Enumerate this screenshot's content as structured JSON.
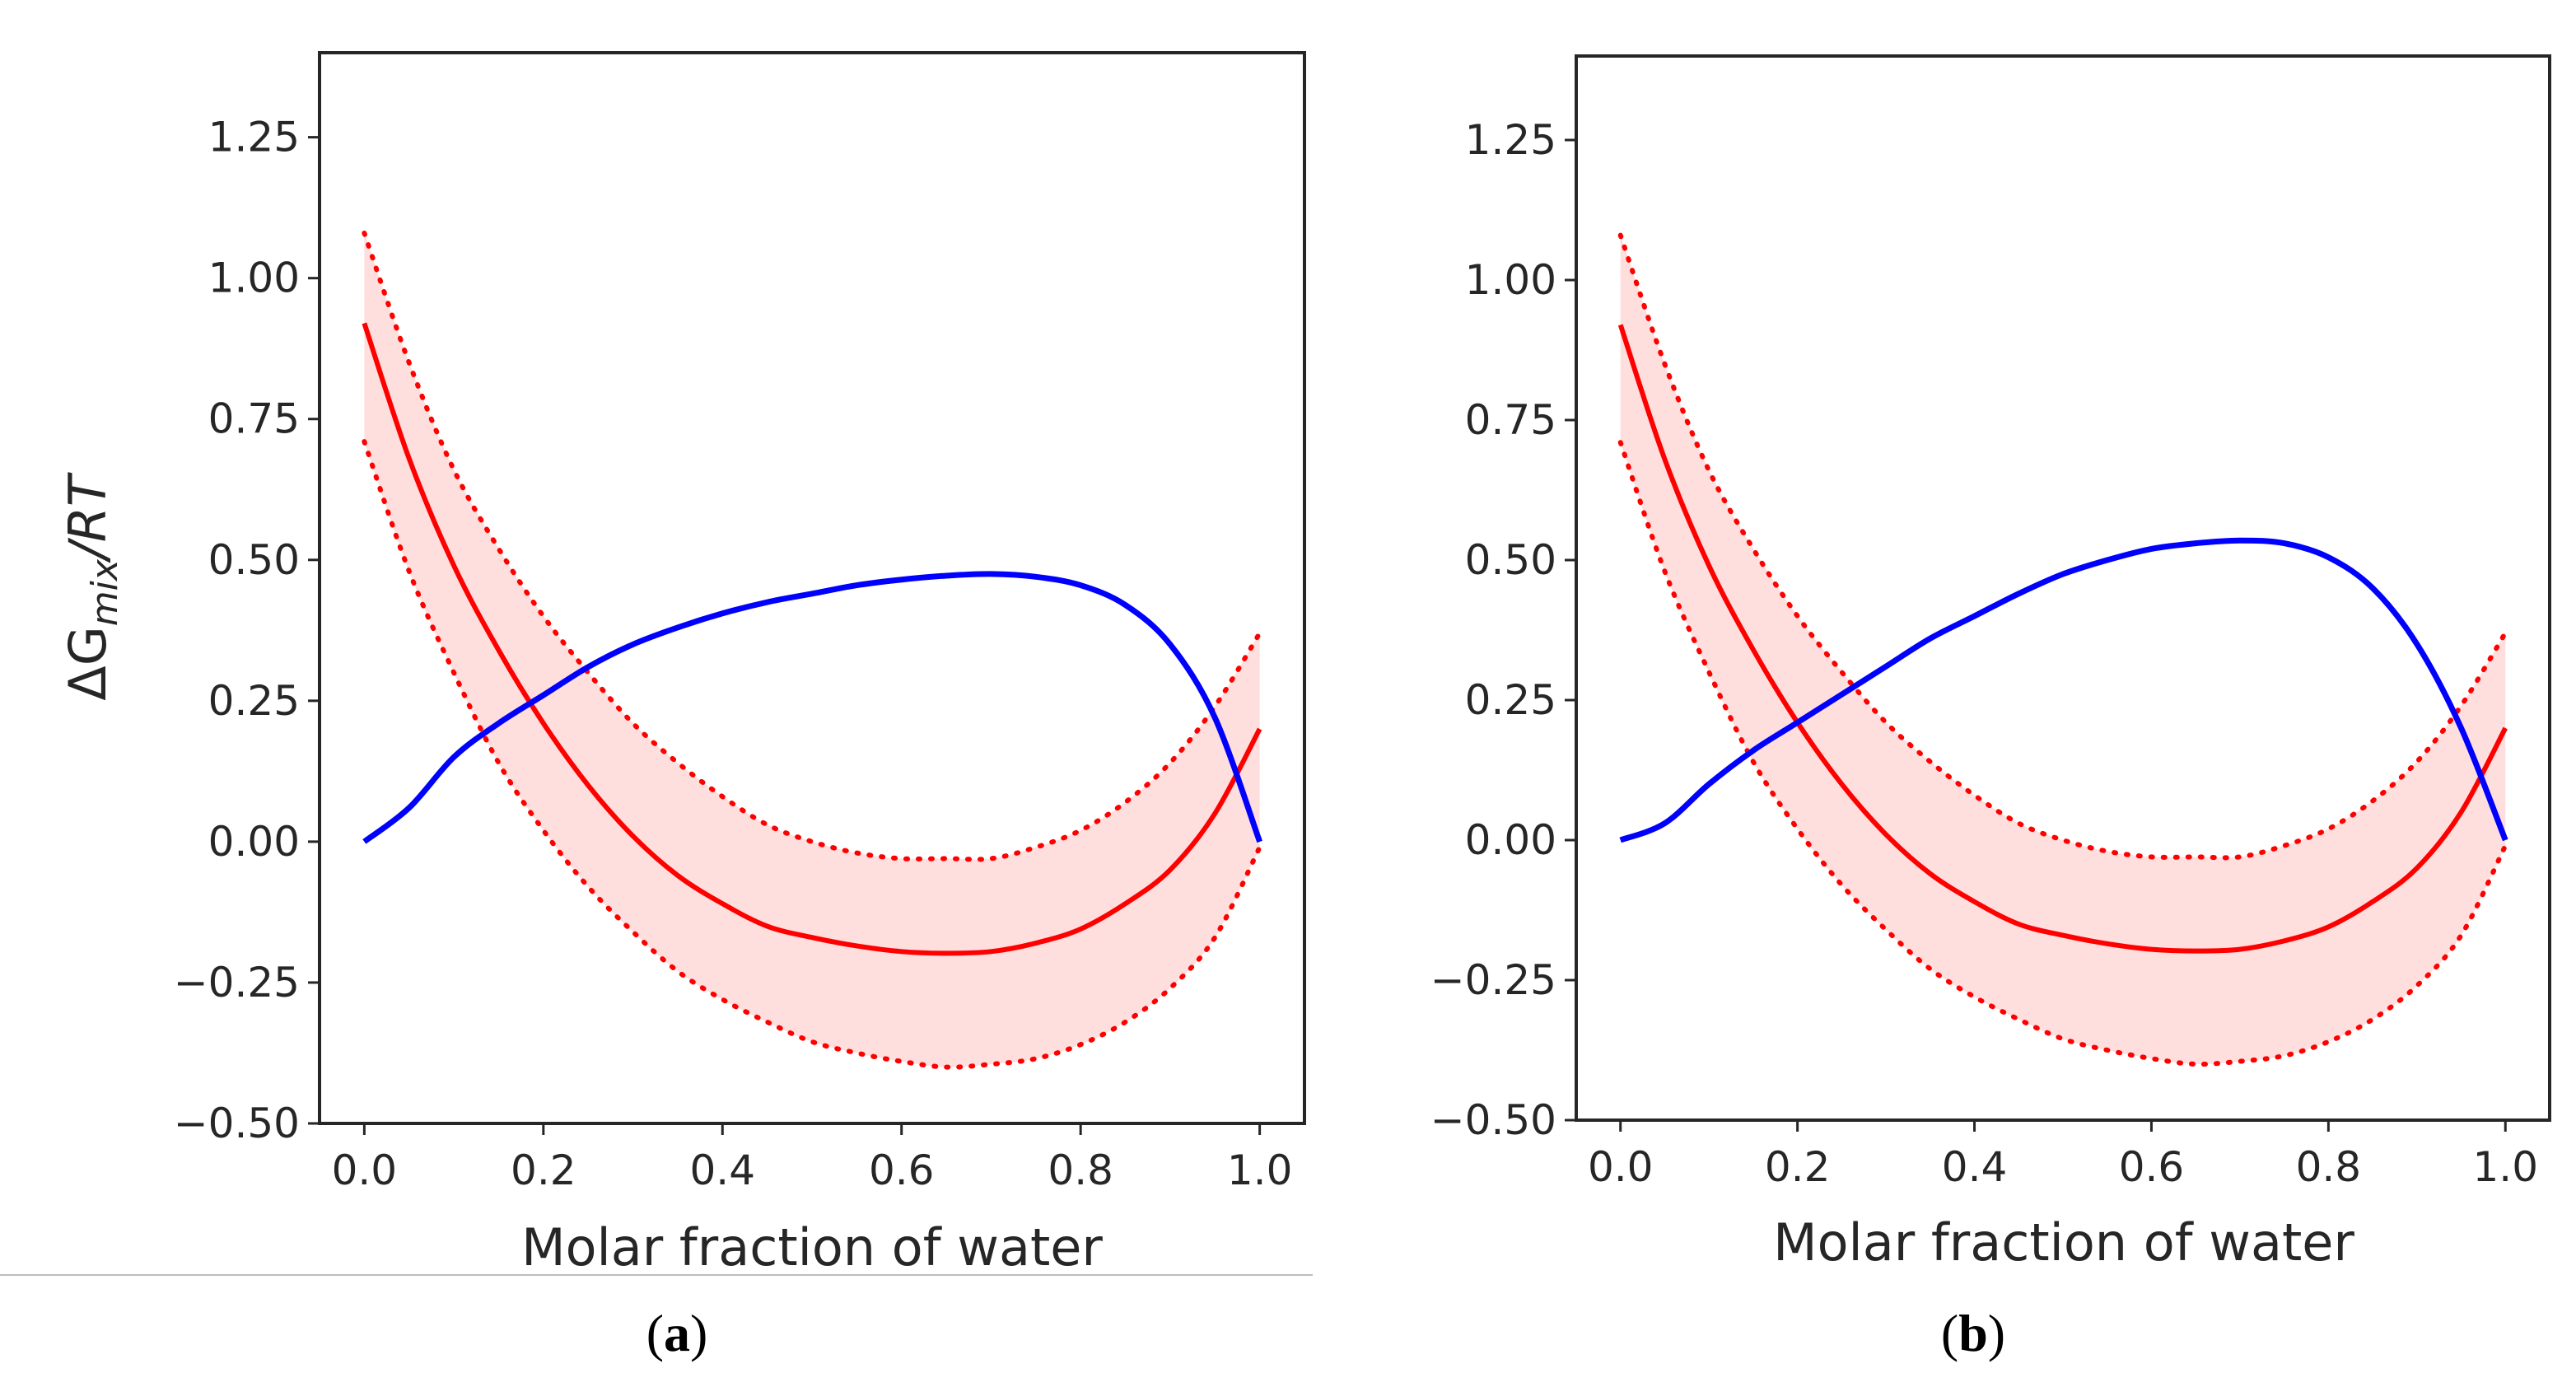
{
  "chart_data": [
    {
      "type": "line",
      "panel_label": "a",
      "xlabel": "Molar fraction of water",
      "ylabel_base": "ΔG",
      "ylabel_sub": "mix",
      "ylabel_tail": "/RT",
      "xlim": [
        -0.05,
        1.05
      ],
      "ylim": [
        -0.5,
        1.4
      ],
      "xticks": [
        0.0,
        0.2,
        0.4,
        0.6,
        0.8,
        1.0
      ],
      "xtick_labels": [
        "0.0",
        "0.2",
        "0.4",
        "0.6",
        "0.8",
        "1.0"
      ],
      "yticks": [
        -0.5,
        -0.25,
        0.0,
        0.25,
        0.5,
        0.75,
        1.0,
        1.25
      ],
      "ytick_labels": [
        "−0.50",
        "−0.25",
        "0.00",
        "0.25",
        "0.50",
        "0.75",
        "1.00",
        "1.25"
      ],
      "grid": false,
      "colors": {
        "red": "#ff0000",
        "blue": "#0000ff",
        "band": "#ffdede"
      },
      "x": [
        0.0,
        0.05,
        0.1,
        0.15,
        0.2,
        0.25,
        0.3,
        0.35,
        0.4,
        0.45,
        0.5,
        0.55,
        0.6,
        0.65,
        0.7,
        0.75,
        0.8,
        0.85,
        0.9,
        0.95,
        1.0
      ],
      "series": [
        {
          "style": "solid-red",
          "values": [
            0.92,
            0.68,
            0.49,
            0.34,
            0.21,
            0.1,
            0.01,
            -0.06,
            -0.11,
            -0.15,
            -0.17,
            -0.185,
            -0.195,
            -0.198,
            -0.195,
            -0.18,
            -0.155,
            -0.11,
            -0.05,
            0.05,
            0.2
          ]
        },
        {
          "style": "dotted-red-upper",
          "values": [
            1.08,
            0.85,
            0.66,
            0.52,
            0.4,
            0.3,
            0.21,
            0.14,
            0.08,
            0.03,
            0.0,
            -0.02,
            -0.03,
            -0.03,
            -0.03,
            -0.01,
            0.02,
            0.07,
            0.14,
            0.24,
            0.37
          ]
        },
        {
          "style": "dotted-red-lower",
          "values": [
            0.71,
            0.48,
            0.3,
            0.14,
            0.02,
            -0.08,
            -0.16,
            -0.23,
            -0.28,
            -0.32,
            -0.355,
            -0.375,
            -0.39,
            -0.4,
            -0.395,
            -0.385,
            -0.36,
            -0.32,
            -0.26,
            -0.17,
            -0.01
          ]
        },
        {
          "style": "blue",
          "values": [
            0.0,
            0.06,
            0.15,
            0.21,
            0.26,
            0.31,
            0.35,
            0.38,
            0.405,
            0.425,
            0.44,
            0.455,
            0.465,
            0.472,
            0.475,
            0.47,
            0.455,
            0.42,
            0.35,
            0.22,
            0.0
          ]
        }
      ]
    },
    {
      "type": "line",
      "panel_label": "b",
      "xlabel": "Molar fraction of water",
      "xlim": [
        -0.05,
        1.05
      ],
      "ylim": [
        -0.5,
        1.4
      ],
      "xticks": [
        0.0,
        0.2,
        0.4,
        0.6,
        0.8,
        1.0
      ],
      "xtick_labels": [
        "0.0",
        "0.2",
        "0.4",
        "0.6",
        "0.8",
        "1.0"
      ],
      "yticks": [
        -0.5,
        -0.25,
        0.0,
        0.25,
        0.5,
        0.75,
        1.0,
        1.25
      ],
      "ytick_labels": [
        "−0.50",
        "−0.25",
        "0.00",
        "0.25",
        "0.50",
        "0.75",
        "1.00",
        "1.25"
      ],
      "grid": false,
      "colors": {
        "red": "#ff0000",
        "blue": "#0000ff",
        "band": "#ffdede"
      },
      "x": [
        0.0,
        0.05,
        0.1,
        0.15,
        0.2,
        0.25,
        0.3,
        0.35,
        0.4,
        0.45,
        0.5,
        0.55,
        0.6,
        0.65,
        0.7,
        0.75,
        0.8,
        0.85,
        0.9,
        0.95,
        1.0
      ],
      "series": [
        {
          "style": "solid-red",
          "values": [
            0.92,
            0.68,
            0.49,
            0.34,
            0.21,
            0.1,
            0.01,
            -0.06,
            -0.11,
            -0.15,
            -0.17,
            -0.185,
            -0.195,
            -0.198,
            -0.195,
            -0.18,
            -0.155,
            -0.11,
            -0.05,
            0.05,
            0.2
          ]
        },
        {
          "style": "dotted-red-upper",
          "values": [
            1.08,
            0.85,
            0.66,
            0.52,
            0.4,
            0.3,
            0.21,
            0.14,
            0.08,
            0.03,
            0.0,
            -0.02,
            -0.03,
            -0.03,
            -0.03,
            -0.01,
            0.02,
            0.07,
            0.14,
            0.24,
            0.37
          ]
        },
        {
          "style": "dotted-red-lower",
          "values": [
            0.71,
            0.48,
            0.3,
            0.14,
            0.02,
            -0.08,
            -0.16,
            -0.23,
            -0.28,
            -0.32,
            -0.355,
            -0.375,
            -0.39,
            -0.4,
            -0.395,
            -0.385,
            -0.36,
            -0.32,
            -0.26,
            -0.17,
            -0.01
          ]
        },
        {
          "style": "blue",
          "values": [
            0.0,
            0.03,
            0.1,
            0.16,
            0.21,
            0.26,
            0.31,
            0.36,
            0.4,
            0.44,
            0.475,
            0.5,
            0.52,
            0.53,
            0.535,
            0.53,
            0.505,
            0.45,
            0.35,
            0.2,
            0.0
          ]
        }
      ]
    }
  ]
}
